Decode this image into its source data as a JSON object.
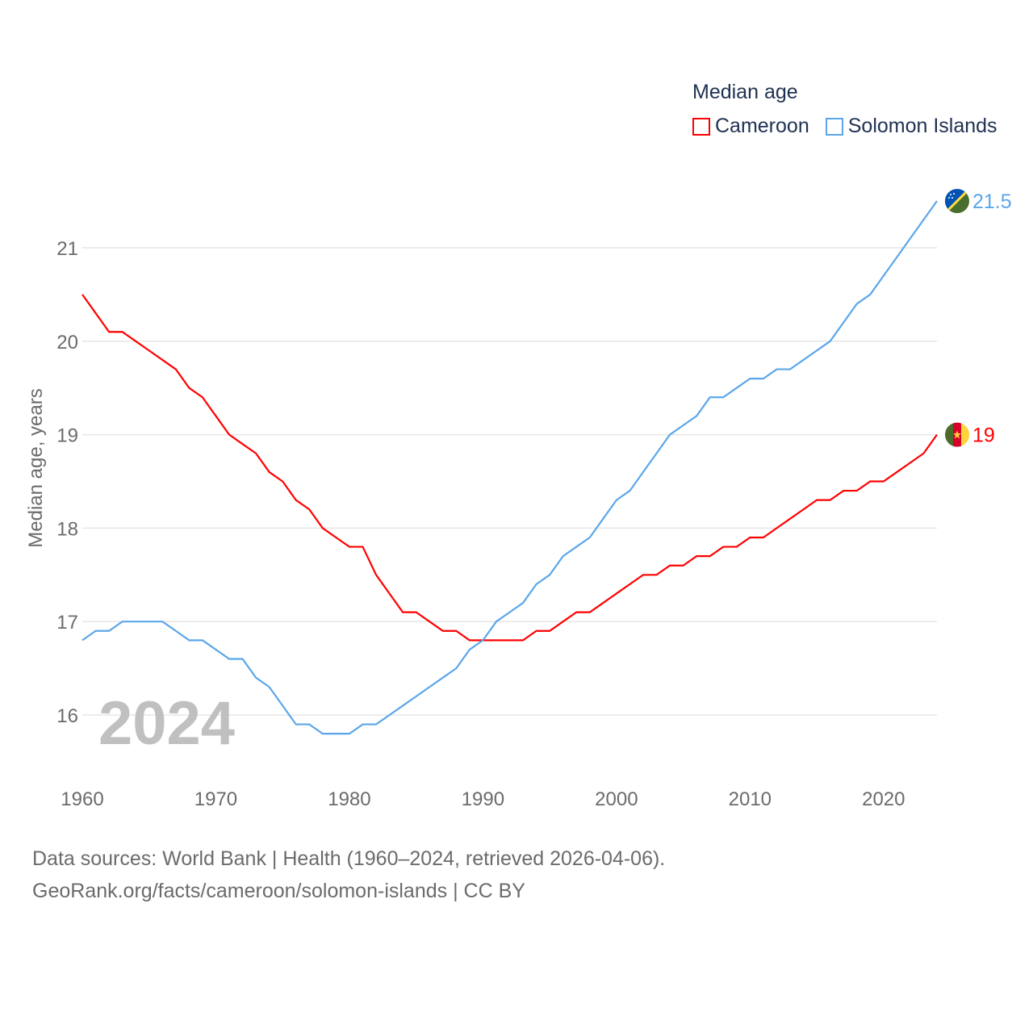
{
  "chart_data": {
    "type": "line",
    "title": "Median age",
    "ylabel": "Median age, years",
    "xlabel": "",
    "xlim": [
      1960,
      2024
    ],
    "ylim": [
      15.5,
      21.6
    ],
    "x_ticks": [
      1960,
      1970,
      1980,
      1990,
      2000,
      2010,
      2020
    ],
    "y_ticks": [
      16,
      17,
      18,
      19,
      20,
      21
    ],
    "grid": true,
    "legend_position": "top-right",
    "year_watermark": "2024",
    "x": [
      1960,
      1961,
      1962,
      1963,
      1964,
      1965,
      1966,
      1967,
      1968,
      1969,
      1970,
      1971,
      1972,
      1973,
      1974,
      1975,
      1976,
      1977,
      1978,
      1979,
      1980,
      1981,
      1982,
      1983,
      1984,
      1985,
      1986,
      1987,
      1988,
      1989,
      1990,
      1991,
      1992,
      1993,
      1994,
      1995,
      1996,
      1997,
      1998,
      1999,
      2000,
      2001,
      2002,
      2003,
      2004,
      2005,
      2006,
      2007,
      2008,
      2009,
      2010,
      2011,
      2012,
      2013,
      2014,
      2015,
      2016,
      2017,
      2018,
      2019,
      2020,
      2021,
      2022,
      2023,
      2024
    ],
    "series": [
      {
        "name": "Cameroon",
        "color": "#ff0000",
        "end_label": "19",
        "flag": "cameroon-flag",
        "values": [
          20.5,
          20.3,
          20.1,
          20.1,
          20.0,
          19.9,
          19.8,
          19.7,
          19.5,
          19.4,
          19.2,
          19.0,
          18.9,
          18.8,
          18.6,
          18.5,
          18.3,
          18.2,
          18.0,
          17.9,
          17.8,
          17.8,
          17.5,
          17.3,
          17.1,
          17.1,
          17.0,
          16.9,
          16.9,
          16.8,
          16.8,
          16.8,
          16.8,
          16.8,
          16.9,
          16.9,
          17.0,
          17.1,
          17.1,
          17.2,
          17.3,
          17.4,
          17.5,
          17.5,
          17.6,
          17.6,
          17.7,
          17.7,
          17.8,
          17.8,
          17.9,
          17.9,
          18.0,
          18.1,
          18.2,
          18.3,
          18.3,
          18.4,
          18.4,
          18.5,
          18.5,
          18.6,
          18.7,
          18.8,
          19.0
        ]
      },
      {
        "name": "Solomon Islands",
        "color": "#5ba6ea",
        "end_label": "21.5",
        "flag": "solomon-islands-flag",
        "values": [
          16.8,
          16.9,
          16.9,
          17.0,
          17.0,
          17.0,
          17.0,
          16.9,
          16.8,
          16.8,
          16.7,
          16.6,
          16.6,
          16.4,
          16.3,
          16.1,
          15.9,
          15.9,
          15.8,
          15.8,
          15.8,
          15.9,
          15.9,
          16.0,
          16.1,
          16.2,
          16.3,
          16.4,
          16.5,
          16.7,
          16.8,
          17.0,
          17.1,
          17.2,
          17.4,
          17.5,
          17.7,
          17.8,
          17.9,
          18.1,
          18.3,
          18.4,
          18.6,
          18.8,
          19.0,
          19.1,
          19.2,
          19.4,
          19.4,
          19.5,
          19.6,
          19.6,
          19.7,
          19.7,
          19.8,
          19.9,
          20.0,
          20.2,
          20.4,
          20.5,
          20.7,
          20.9,
          21.1,
          21.3,
          21.5
        ]
      }
    ]
  },
  "source": {
    "line1": "Data sources: World Bank | Health (1960–2024, retrieved 2026-04-06).",
    "line2": "GeoRank.org/facts/cameroon/solomon-islands | CC BY"
  }
}
